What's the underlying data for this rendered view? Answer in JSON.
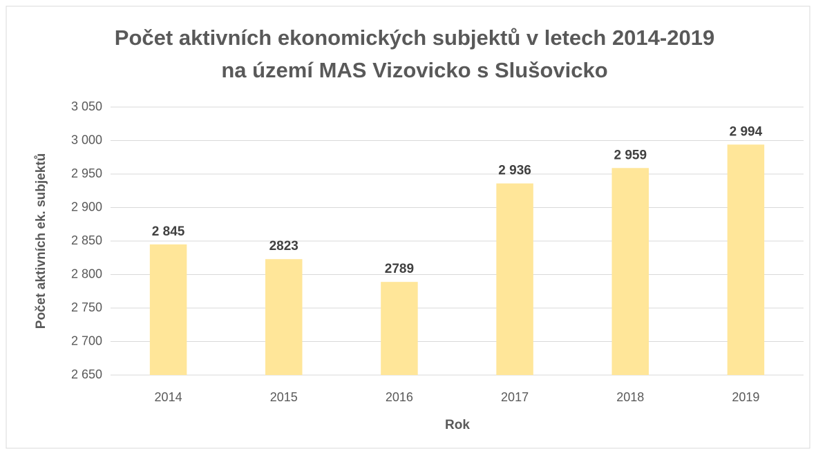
{
  "chart_data": {
    "type": "bar",
    "title": [
      "Počet aktivních ekonomických subjektů v letech 2014-2019",
      "na území MAS Vizovicko s Slušovicko"
    ],
    "x_label": "Rok",
    "y_label": "Počet aktivních ek. subjektů",
    "categories": [
      "2014",
      "2015",
      "2016",
      "2017",
      "2018",
      "2019"
    ],
    "values": [
      2845,
      2823,
      2789,
      2936,
      2959,
      2994
    ],
    "value_labels": [
      "2 845",
      "2823",
      "2789",
      "2 936",
      "2 959",
      "2 994"
    ],
    "color": "#ffe699",
    "ylim": [
      2650,
      3050
    ],
    "yticks": [
      {
        "value": 2650,
        "label": "2 650"
      },
      {
        "value": 2700,
        "label": "2 700"
      },
      {
        "value": 2750,
        "label": "2 750"
      },
      {
        "value": 2800,
        "label": "2 800"
      },
      {
        "value": 2850,
        "label": "2 850"
      },
      {
        "value": 2900,
        "label": "2 900"
      },
      {
        "value": 2950,
        "label": "2 950"
      },
      {
        "value": 3000,
        "label": "3 000"
      },
      {
        "value": 3050,
        "label": "3 050"
      }
    ],
    "grid": true
  }
}
